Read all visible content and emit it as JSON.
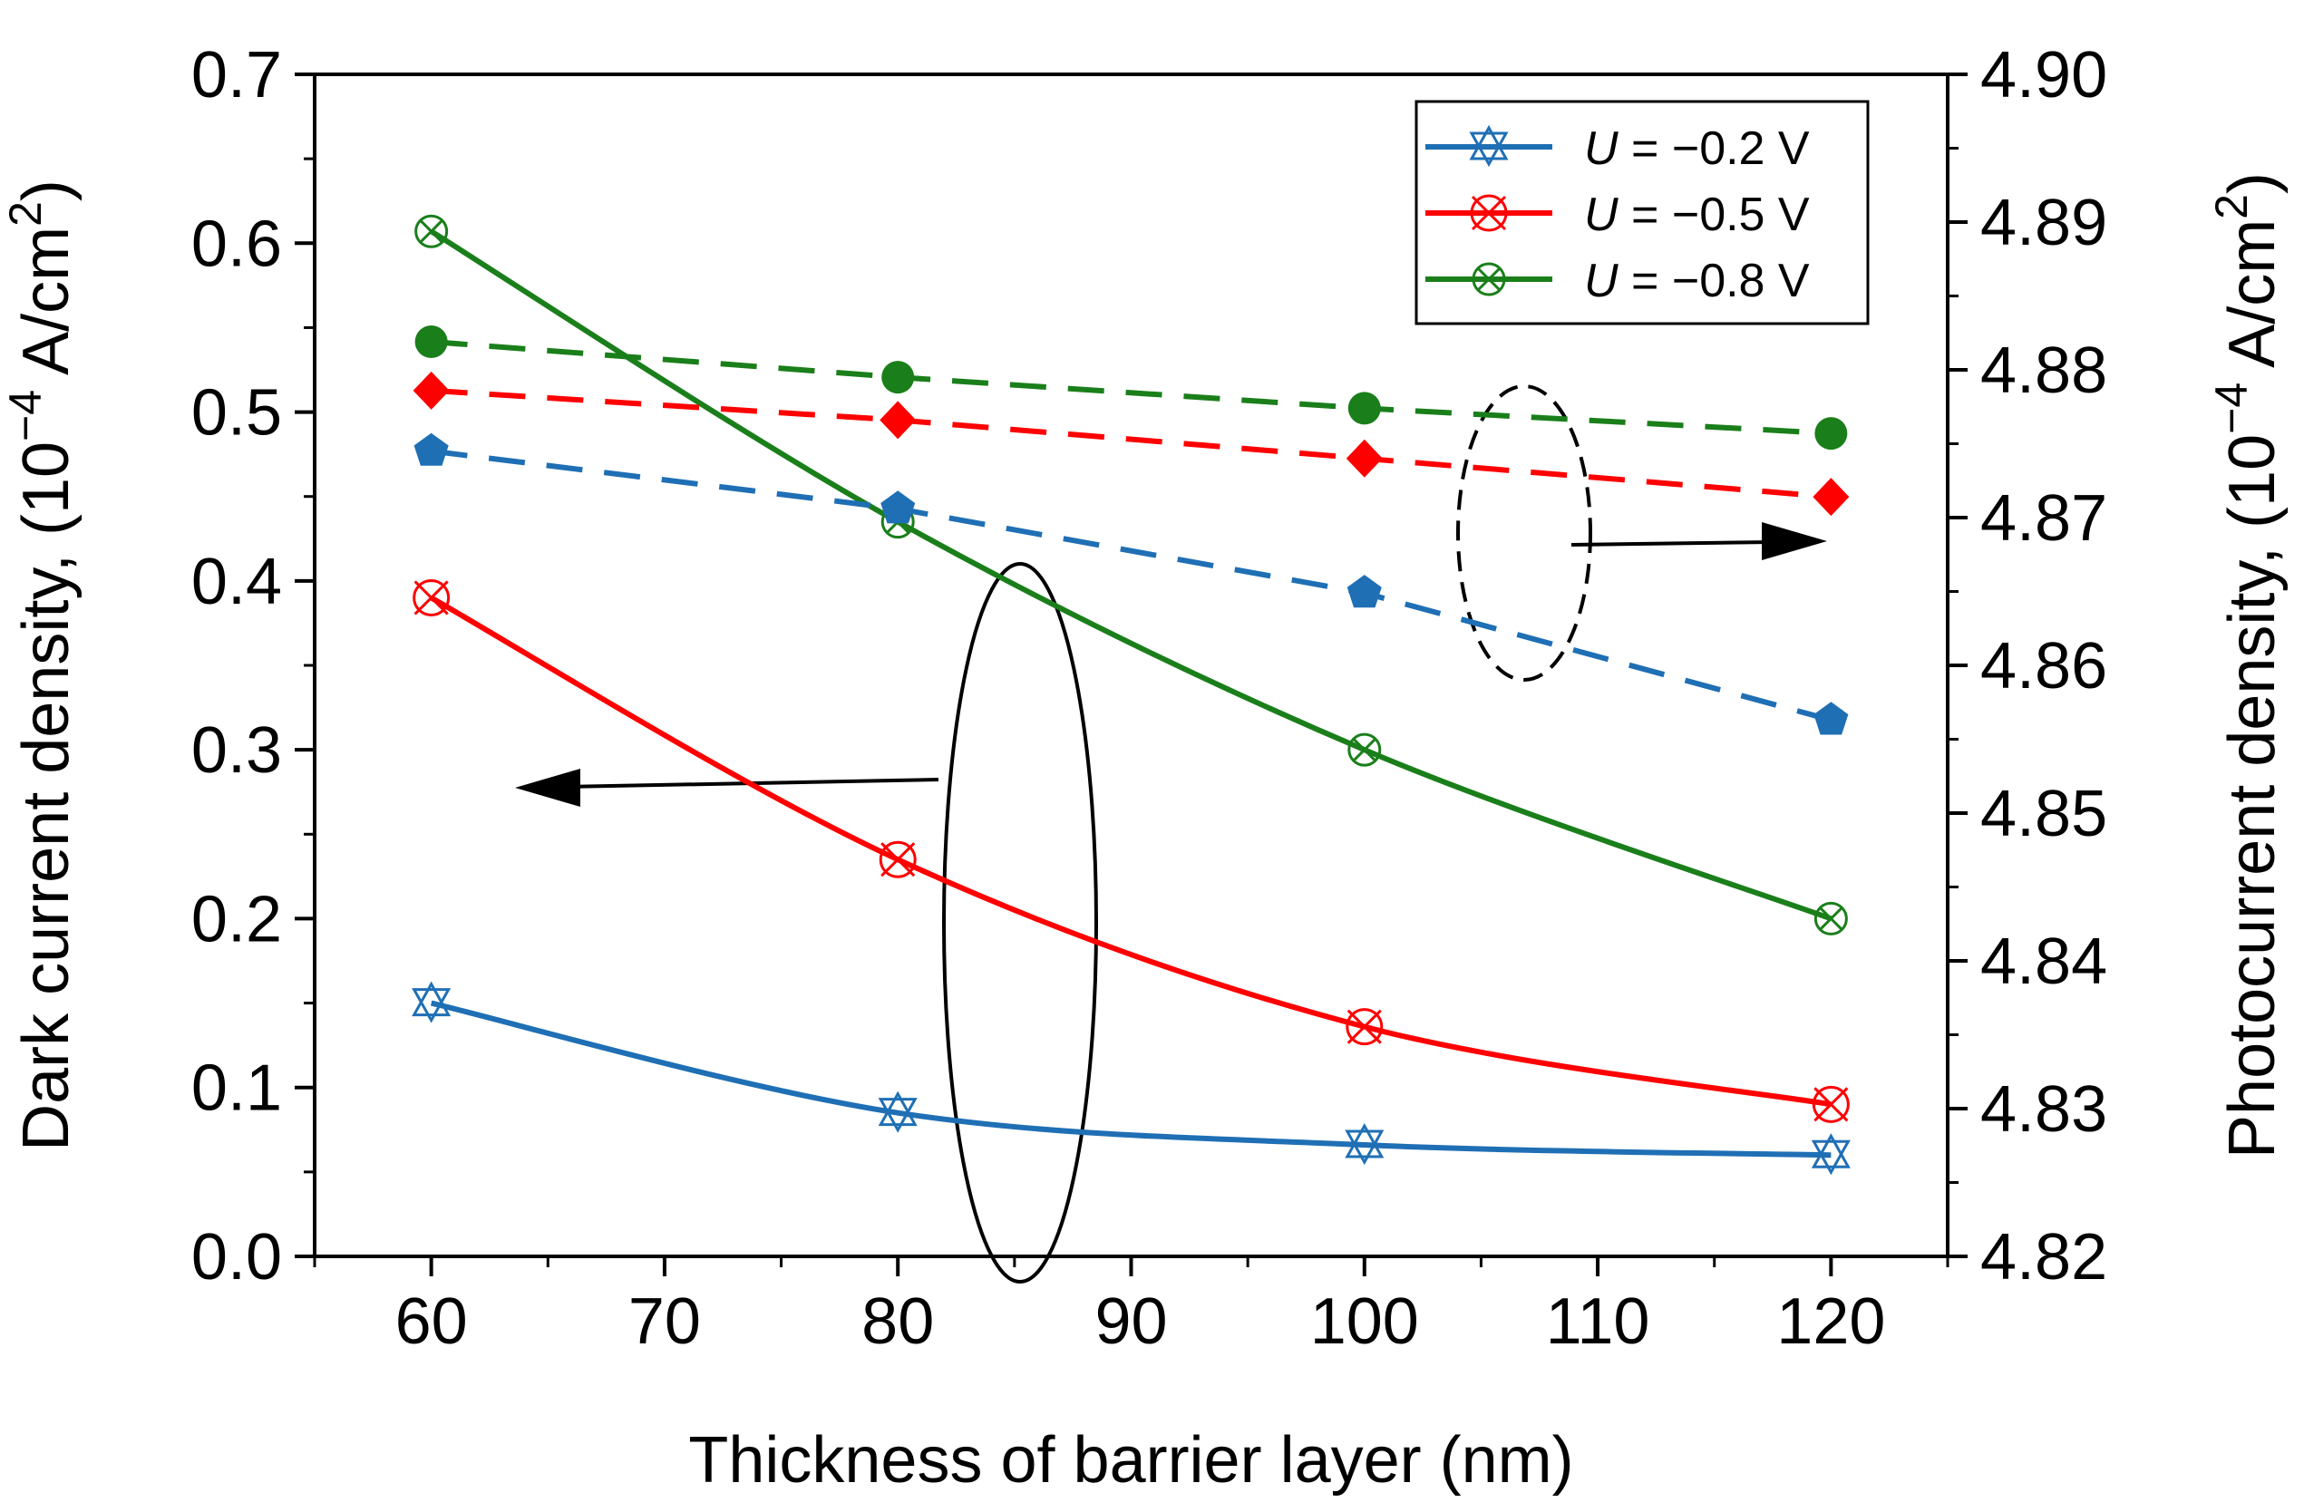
{
  "chart_data": {
    "type": "line",
    "x": [
      60,
      80,
      100,
      120
    ],
    "xlabel": "Thickness of barrier layer (nm)",
    "xlim": [
      55,
      125
    ],
    "x_ticks": [
      "60",
      "70",
      "80",
      "90",
      "100",
      "110",
      "120"
    ],
    "left_axis": {
      "label_main": "Dark current density, (10",
      "label_exp": "−4",
      "label_unit": " A/cm",
      "label_sup": "2",
      "label_close": ")",
      "ylim": [
        0.0,
        0.7
      ],
      "ticks": [
        "0.0",
        "0.1",
        "0.2",
        "0.3",
        "0.4",
        "0.5",
        "0.6",
        "0.7"
      ]
    },
    "right_axis": {
      "label_main": "Photocurrent density, (10",
      "label_exp": "−4",
      "label_unit": " A/cm",
      "label_sup": "2",
      "label_close": ")",
      "ylim": [
        4.82,
        4.9
      ],
      "ticks": [
        "4.82",
        "4.83",
        "4.84",
        "4.85",
        "4.86",
        "4.87",
        "4.88",
        "4.89",
        "4.90"
      ]
    },
    "legend": {
      "position": "top-right",
      "entries": [
        {
          "prefix": "U",
          "text": " = −0.2 V",
          "color": "#1f6fb5"
        },
        {
          "prefix": "U",
          "text": " = −0.5 V",
          "color": "#ff0000"
        },
        {
          "prefix": "U",
          "text": " = −0.8 V",
          "color": "#1a7f1a"
        }
      ]
    },
    "series": [
      {
        "name": "Dark current, U = −0.2 V",
        "axis": "left",
        "style": "solid",
        "marker": "star-cross",
        "color": "#1f6fb5",
        "values": [
          0.15,
          0.085,
          0.066,
          0.06
        ]
      },
      {
        "name": "Dark current, U = −0.5 V",
        "axis": "left",
        "style": "solid",
        "marker": "x-circle",
        "color": "#ff0000",
        "values": [
          0.39,
          0.235,
          0.136,
          0.09
        ]
      },
      {
        "name": "Dark current, U = −0.8 V",
        "axis": "left",
        "style": "solid",
        "marker": "circle-x",
        "color": "#1a7f1a",
        "values": [
          0.607,
          0.435,
          0.3,
          0.2
        ]
      },
      {
        "name": "Photocurrent, U = −0.2 V",
        "axis": "right",
        "style": "dashed",
        "marker": "pentagon",
        "color": "#1f6fb5",
        "values": [
          4.8745,
          4.8706,
          4.8649,
          4.8563
        ]
      },
      {
        "name": "Photocurrent, U = −0.5 V",
        "axis": "right",
        "style": "dashed",
        "marker": "diamond",
        "color": "#ff0000",
        "values": [
          4.8786,
          4.8766,
          4.874,
          4.8714
        ]
      },
      {
        "name": "Photocurrent, U = −0.8 V",
        "axis": "right",
        "style": "dashed",
        "marker": "circle",
        "color": "#1a7f1a",
        "values": [
          4.8819,
          4.8795,
          4.8774,
          4.8757
        ]
      }
    ],
    "annotations": [
      {
        "type": "ellipse",
        "group": "dark current curves",
        "points_to": "left axis",
        "style": "solid"
      },
      {
        "type": "ellipse",
        "group": "photocurrent curves",
        "points_to": "right axis",
        "style": "dashed"
      }
    ]
  }
}
